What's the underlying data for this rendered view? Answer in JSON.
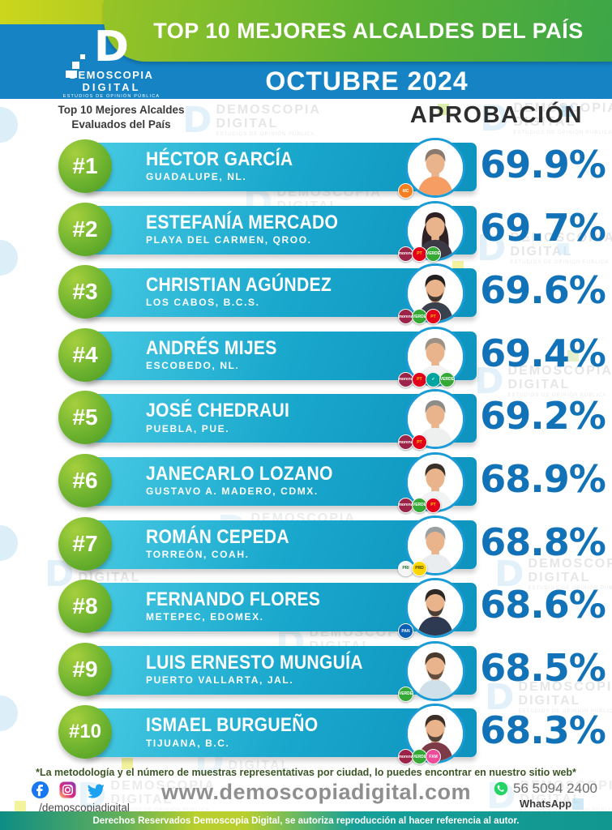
{
  "header": {
    "title": "TOP 10 MEJORES ALCALDES DEL PAÍS",
    "month": "OCTUBRE 2024",
    "logo": {
      "d": "D",
      "name": "DEMOSCOPIA",
      "name2": "DIGITAL",
      "tagline": "ESTUDIOS DE OPINIÓN PÚBLICA"
    }
  },
  "subheader": {
    "left_line1": "Top 10 Mejores Alcaldes",
    "left_line2": "Evaluados del País",
    "right": "APROBACIÓN"
  },
  "rows": [
    {
      "rank": "#1",
      "name": "HÉCTOR GARCÍA",
      "city": "GUADALUPE, NL.",
      "approval": "69.9%",
      "parties": [
        "mc"
      ],
      "avatar": {
        "shirt": "#f59d62",
        "hair": "#8a7a6d",
        "female": false,
        "beard": false
      }
    },
    {
      "rank": "#2",
      "name": "ESTEFANÍA MERCADO",
      "city": "PLAYA DEL CARMEN, QROO.",
      "approval": "69.7%",
      "parties": [
        "morena",
        "pt",
        "verde"
      ],
      "avatar": {
        "shirt": "#3d3a45",
        "hair": "#2e2226",
        "female": true,
        "beard": false
      }
    },
    {
      "rank": "#3",
      "name": "CHRISTIAN AGÚNDEZ",
      "city": "LOS CABOS, B.C.S.",
      "approval": "69.6%",
      "parties": [
        "morena",
        "verde",
        "pt"
      ],
      "avatar": {
        "shirt": "#39404e",
        "hair": "#232020",
        "female": false,
        "beard": true
      }
    },
    {
      "rank": "#4",
      "name": "ANDRÉS MIJES",
      "city": "ESCOBEDO, NL.",
      "approval": "69.4%",
      "parties": [
        "morena",
        "pt",
        "hagamos",
        "verde"
      ],
      "avatar": {
        "shirt": "#f3f4f2",
        "hair": "#9b9185",
        "female": false,
        "beard": false
      }
    },
    {
      "rank": "#5",
      "name": "JOSÉ CHEDRAUI",
      "city": "PUEBLA, PUE.",
      "approval": "69.2%",
      "parties": [
        "morena",
        "pt"
      ],
      "avatar": {
        "shirt": "#eef0ef",
        "hair": "#8c8c88",
        "female": false,
        "beard": false
      }
    },
    {
      "rank": "#6",
      "name": "JANECARLO LOZANO",
      "city": "GUSTAVO A. MADERO, CDMX.",
      "approval": "68.9%",
      "parties": [
        "morena",
        "verde",
        "pt"
      ],
      "avatar": {
        "shirt": "#f1f3f4",
        "hair": "#3a3128",
        "female": false,
        "beard": false
      }
    },
    {
      "rank": "#7",
      "name": "ROMÁN CEPEDA",
      "city": "TORREÓN, COAH.",
      "approval": "68.8%",
      "parties": [
        "pri",
        "prd"
      ],
      "avatar": {
        "shirt": "#e9edf0",
        "hair": "#9aa0a2",
        "female": false,
        "beard": false
      }
    },
    {
      "rank": "#8",
      "name": "FERNANDO FLORES",
      "city": "METEPEC, EDOMEX.",
      "approval": "68.6%",
      "parties": [
        "pan"
      ],
      "avatar": {
        "shirt": "#2e3a52",
        "hair": "#2d2824",
        "female": false,
        "beard": true
      }
    },
    {
      "rank": "#9",
      "name": "LUIS ERNESTO MUNGUÍA",
      "city": "PUERTO VALLARTA, JAL.",
      "approval": "68.5%",
      "parties": [
        "verde"
      ],
      "avatar": {
        "shirt": "#cfe0ea",
        "hair": "#4a3b2e",
        "female": false,
        "beard": true
      }
    },
    {
      "rank": "#10",
      "name": "ISMAEL BURGUEÑO",
      "city": "TIJUANA, B.C.",
      "approval": "68.3%",
      "parties": [
        "morena",
        "verde",
        "fxm"
      ],
      "avatar": {
        "shirt": "#7c3b47",
        "hair": "#3c2f28",
        "female": false,
        "beard": true
      }
    }
  ],
  "parties": {
    "morena": {
      "label": "morena",
      "bg": "#9d2449",
      "fg": "#ffffff"
    },
    "pt": {
      "label": "PT",
      "bg": "#e3001b",
      "fg": "#ffd400"
    },
    "verde": {
      "label": "VERDE",
      "bg": "#35a935",
      "fg": "#ffffff"
    },
    "pri": {
      "label": "PRI",
      "bg": "#f5f5f5",
      "fg": "#1c6e33"
    },
    "prd": {
      "label": "PRD",
      "bg": "#ffd700",
      "fg": "#3a3a00"
    },
    "pan": {
      "label": "PAN",
      "bg": "#0a5eb4",
      "fg": "#ffffff"
    },
    "mc": {
      "label": "MC",
      "bg": "#f77f1f",
      "fg": "#ffffff"
    },
    "hagamos": {
      "label": "✓",
      "bg": "#00a5a0",
      "fg": "#ffffff"
    },
    "fxm": {
      "label": "FXM",
      "bg": "#ee4c9b",
      "fg": "#ffffff"
    }
  },
  "footer": {
    "note": "*La metodología y el número de muestras representativas por ciudad, lo puedes encontrar en nuestro sitio web*",
    "handle": "/demoscopiadigital",
    "website": "www.demoscopiadigital.com",
    "whatsapp_number": "56 5094 2400",
    "whatsapp_label": "WhatsApp",
    "copyright": "Derechos Reservados Demoscopia Digital, se autoriza reproducción al hacer referencia al autor."
  },
  "watermark": {
    "d": "D",
    "line1": "DEMOSCOPIA",
    "line2": "DIGITAL",
    "line3": "ESTUDIOS DE OPINIÓN PÚBLICA"
  },
  "colors": {
    "accent_blue": "#1272b8",
    "bar_teal": "#14a3c9",
    "rank_green": "#6db32f",
    "header_blue": "#1583c4",
    "banner_green": "#5cb133"
  },
  "chart_data": {
    "type": "table",
    "title": "TOP 10 MEJORES ALCALDES DEL PAÍS",
    "subtitle": "OCTUBRE 2024",
    "metric": "APROBACIÓN (%)",
    "columns": [
      "rank",
      "alcalde",
      "ciudad",
      "aprobacion_pct",
      "partidos"
    ],
    "rows": [
      [
        1,
        "Héctor García",
        "Guadalupe, NL.",
        69.9,
        [
          "MC"
        ]
      ],
      [
        2,
        "Estefanía Mercado",
        "Playa del Carmen, Qroo.",
        69.7,
        [
          "Morena",
          "PT",
          "Verde"
        ]
      ],
      [
        3,
        "Christian Agúndez",
        "Los Cabos, B.C.S.",
        69.6,
        [
          "Morena",
          "Verde",
          "PT"
        ]
      ],
      [
        4,
        "Andrés Mijes",
        "Escobedo, NL.",
        69.4,
        [
          "Morena",
          "PT",
          "Hagamos",
          "Verde"
        ]
      ],
      [
        5,
        "José Chedraui",
        "Puebla, Pue.",
        69.2,
        [
          "Morena",
          "PT"
        ]
      ],
      [
        6,
        "Janecarlo Lozano",
        "Gustavo A. Madero, CDMX.",
        68.9,
        [
          "Morena",
          "Verde",
          "PT"
        ]
      ],
      [
        7,
        "Román Cepeda",
        "Torreón, Coah.",
        68.8,
        [
          "PRI",
          "PRD"
        ]
      ],
      [
        8,
        "Fernando Flores",
        "Metepec, Edomex.",
        68.6,
        [
          "PAN"
        ]
      ],
      [
        9,
        "Luis Ernesto Munguía",
        "Puerto Vallarta, Jal.",
        68.5,
        [
          "Verde"
        ]
      ],
      [
        10,
        "Ismael Burgueño",
        "Tijuana, B.C.",
        68.3,
        [
          "Morena",
          "Verde",
          "FXM"
        ]
      ]
    ],
    "value_range": [
      68.3,
      69.9
    ]
  }
}
